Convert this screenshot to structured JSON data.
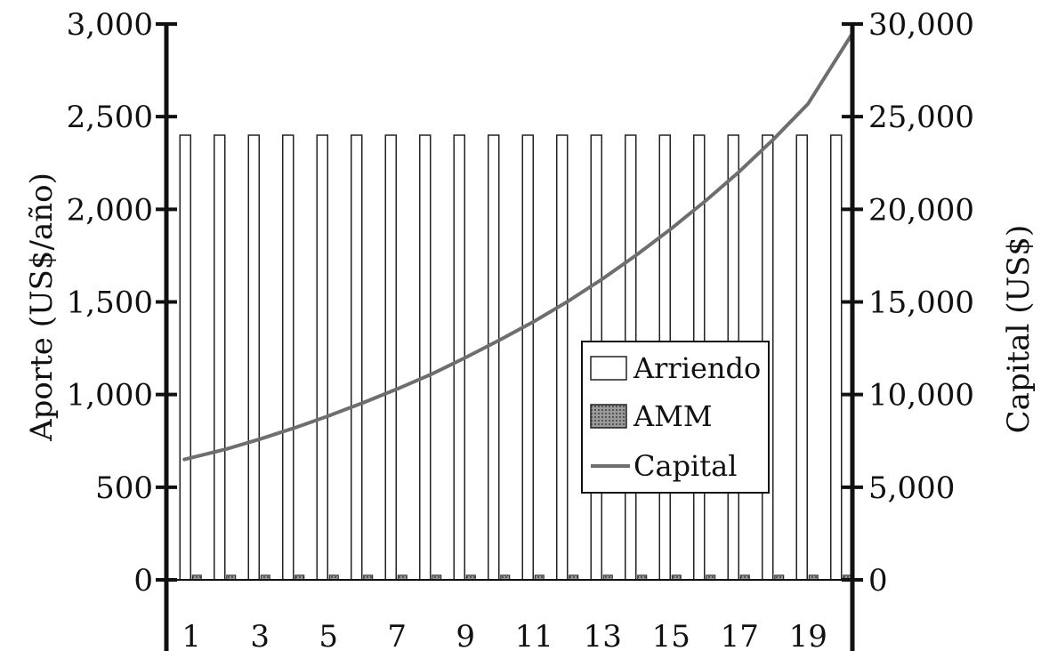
{
  "chart_data": {
    "type": "bar",
    "x": [
      1,
      2,
      3,
      4,
      5,
      6,
      7,
      8,
      9,
      10,
      11,
      12,
      13,
      14,
      15,
      16,
      17,
      18,
      19,
      20
    ],
    "x_tick_labels": [
      "1",
      "3",
      "5",
      "7",
      "9",
      "11",
      "13",
      "15",
      "17",
      "19"
    ],
    "series": [
      {
        "name": "Arriendo",
        "kind": "bar",
        "axis": "left",
        "values": [
          2400,
          2400,
          2400,
          2400,
          2400,
          2400,
          2400,
          2400,
          2400,
          2400,
          2400,
          2400,
          2400,
          2400,
          2400,
          2400,
          2400,
          2400,
          2400,
          2400
        ]
      },
      {
        "name": "AMM",
        "kind": "bar",
        "axis": "left",
        "values": [
          25,
          25,
          25,
          25,
          25,
          25,
          25,
          25,
          25,
          25,
          25,
          25,
          25,
          25,
          25,
          25,
          25,
          25,
          25,
          25
        ]
      },
      {
        "name": "Capital",
        "kind": "line",
        "axis": "right",
        "values": [
          6500,
          7050,
          7600,
          8200,
          8850,
          9550,
          10300,
          11100,
          12000,
          12950,
          13950,
          15050,
          16250,
          17550,
          18950,
          20450,
          22050,
          23800,
          25700,
          29400
        ]
      }
    ],
    "y_left": {
      "label": "Aporte (US$/año)",
      "lim": [
        0,
        3000
      ],
      "tick_labels": [
        "0",
        "500",
        "1,000",
        "1,500",
        "2,000",
        "2,500",
        "3,000"
      ],
      "ticks": [
        0,
        500,
        1000,
        1500,
        2000,
        2500,
        3000
      ]
    },
    "y_right": {
      "label": "Capital (US$)",
      "lim": [
        0,
        30000
      ],
      "tick_labels": [
        "0",
        "5,000",
        "10,000",
        "15,000",
        "20,000",
        "25,000",
        "30,000"
      ],
      "ticks": [
        0,
        5000,
        10000,
        15000,
        20000,
        25000,
        30000
      ]
    },
    "legend": {
      "placement": "center-right",
      "entries": [
        "Arriendo",
        "AMM",
        "Capital"
      ]
    },
    "grid": false,
    "colors": {
      "arriendo_fill": "#ffffff",
      "bar_stroke": "#222222",
      "amm_fill": "#8a8a8a",
      "capital_line": "#6e6e6e",
      "axis": "#111111"
    }
  }
}
